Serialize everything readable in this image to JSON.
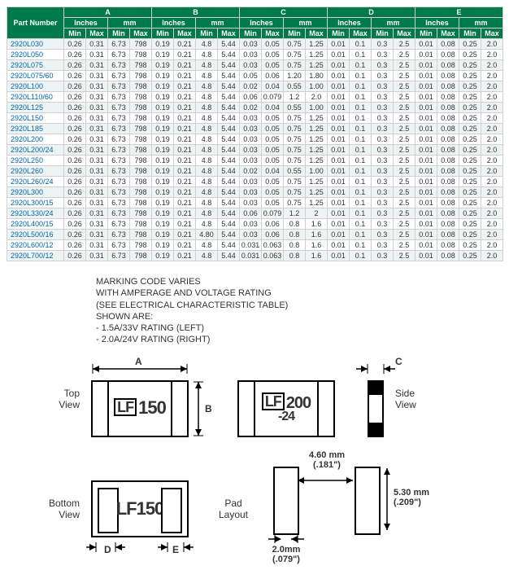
{
  "table": {
    "header_bg": "#007a4d",
    "part_number_label": "Part  Number",
    "dim_labels": [
      "A",
      "B",
      "C",
      "D",
      "E"
    ],
    "unit_labels": [
      "Inches",
      "mm"
    ],
    "minmax": [
      "Min",
      "Max"
    ],
    "rows": [
      {
        "pn": "2920L030",
        "v": [
          "0.26",
          "0.31",
          "6.73",
          "798",
          "0.19",
          "0.21",
          "4.8",
          "5.44",
          "0.03",
          "0.05",
          "0.75",
          "1.25",
          "0.01",
          "0.1",
          "0.3",
          "2.5",
          "0.01",
          "0.08",
          "0.25",
          "2.0"
        ]
      },
      {
        "pn": "2920L050",
        "v": [
          "0.26",
          "0.31",
          "6.73",
          "798",
          "0.19",
          "0.21",
          "4.8",
          "5.44",
          "0.03",
          "0.05",
          "0.75",
          "1.25",
          "0.01",
          "0.1",
          "0.3",
          "2.5",
          "0.01",
          "0.08",
          "0.25",
          "2.0"
        ]
      },
      {
        "pn": "2920L075",
        "v": [
          "0.26",
          "0.31",
          "6.73",
          "798",
          "0.19",
          "0.21",
          "4.8",
          "5.44",
          "0.03",
          "0.05",
          "0.75",
          "1.25",
          "0.01",
          "0.1",
          "0.3",
          "2.5",
          "0.01",
          "0.08",
          "0.25",
          "2.0"
        ]
      },
      {
        "pn": "2920L075/60",
        "v": [
          "0.26",
          "0.31",
          "6.73",
          "798",
          "0.19",
          "0.21",
          "4.8",
          "5.44",
          "0.05",
          "0.06",
          "1.20",
          "1.80",
          "0.01",
          "0.1",
          "0.3",
          "2.5",
          "0.01",
          "0.08",
          "0.25",
          "2.0"
        ]
      },
      {
        "pn": "2920L100",
        "v": [
          "0.26",
          "0.31",
          "6.73",
          "798",
          "0.19",
          "0.21",
          "4.8",
          "5.44",
          "0.02",
          "0.04",
          "0.55",
          "1.00",
          "0.01",
          "0.1",
          "0.3",
          "2.5",
          "0.01",
          "0.08",
          "0.25",
          "2.0"
        ]
      },
      {
        "pn": "2920L110/60",
        "v": [
          "0.26",
          "0.31",
          "6.73",
          "798",
          "0.19",
          "0.21",
          "4.8",
          "5.44",
          "0.06",
          "0.079",
          "1.2",
          "2.0",
          "0.01",
          "0.1",
          "0.3",
          "2.5",
          "0.01",
          "0.08",
          "0.25",
          "2.0"
        ]
      },
      {
        "pn": "2920L125",
        "v": [
          "0.26",
          "0.31",
          "6.73",
          "798",
          "0.19",
          "0.21",
          "4.8",
          "5.44",
          "0.02",
          "0.04",
          "0.55",
          "1.00",
          "0.01",
          "0.1",
          "0.3",
          "2.5",
          "0.01",
          "0.08",
          "0.25",
          "2.0"
        ]
      },
      {
        "pn": "2920L150",
        "v": [
          "0.26",
          "0.31",
          "6.73",
          "798",
          "0.19",
          "0.21",
          "4.8",
          "5.44",
          "0.03",
          "0.05",
          "0.75",
          "1.25",
          "0.01",
          "0.1",
          "0.3",
          "2.5",
          "0.01",
          "0.08",
          "0.25",
          "2.0"
        ]
      },
      {
        "pn": "2920L185",
        "v": [
          "0.26",
          "0.31",
          "6.73",
          "798",
          "0.19",
          "0.21",
          "4.8",
          "5.44",
          "0.03",
          "0.05",
          "0.75",
          "1.25",
          "0.01",
          "0.1",
          "0.3",
          "2.5",
          "0.01",
          "0.08",
          "0.25",
          "2.0"
        ]
      },
      {
        "pn": "2920L200",
        "v": [
          "0.26",
          "0.31",
          "6.73",
          "798",
          "0.19",
          "0.21",
          "4.8",
          "5.44",
          "0.03",
          "0.05",
          "0.75",
          "1.25",
          "0.01",
          "0.1",
          "0.3",
          "2.5",
          "0.01",
          "0.08",
          "0.25",
          "2.0"
        ]
      },
      {
        "pn": "2920L200/24",
        "v": [
          "0.26",
          "0.31",
          "6.73",
          "798",
          "0.19",
          "0.21",
          "4.8",
          "5.44",
          "0.03",
          "0.05",
          "0.75",
          "1.25",
          "0.01",
          "0.1",
          "0.3",
          "2.5",
          "0.01",
          "0.08",
          "0.25",
          "2.0"
        ]
      },
      {
        "pn": "2920L250",
        "v": [
          "0.26",
          "0.31",
          "6.73",
          "798",
          "0.19",
          "0.21",
          "4.8",
          "5.44",
          "0.03",
          "0.05",
          "0.75",
          "1.25",
          "0.01",
          "0.1",
          "0.3",
          "2.5",
          "0.01",
          "0.08",
          "0.25",
          "2.0"
        ]
      },
      {
        "pn": "2920L260",
        "v": [
          "0.26",
          "0.31",
          "6.73",
          "798",
          "0.19",
          "0.21",
          "4.8",
          "5.44",
          "0.02",
          "0.04",
          "0.55",
          "1.00",
          "0.01",
          "0.1",
          "0.3",
          "2.5",
          "0.01",
          "0.08",
          "0.25",
          "2.0"
        ]
      },
      {
        "pn": "2920L260/24",
        "v": [
          "0.26",
          "0.31",
          "6.73",
          "798",
          "0.19",
          "0.21",
          "4.8",
          "5.44",
          "0.03",
          "0.05",
          "0.75",
          "1.25",
          "0.01",
          "0.1",
          "0.3",
          "2.5",
          "0.01",
          "0.08",
          "0.25",
          "2.0"
        ]
      },
      {
        "pn": "2920L300",
        "v": [
          "0.26",
          "0.31",
          "6.73",
          "798",
          "0.19",
          "0.21",
          "4.8",
          "5.44",
          "0.03",
          "0.05",
          "0.75",
          "1.25",
          "0.01",
          "0.1",
          "0.3",
          "2.5",
          "0.01",
          "0.08",
          "0.25",
          "2.0"
        ]
      },
      {
        "pn": "2920L300/15",
        "v": [
          "0.26",
          "0.31",
          "6.73",
          "798",
          "0.19",
          "0.21",
          "4.8",
          "5.44",
          "0.03",
          "0.05",
          "0.75",
          "1.25",
          "0.01",
          "0.1",
          "0.3",
          "2.5",
          "0.01",
          "0.08",
          "0.25",
          "2.0"
        ]
      },
      {
        "pn": "2920L330/24",
        "v": [
          "0.26",
          "0.31",
          "6.73",
          "798",
          "0.19",
          "0.21",
          "4.8",
          "5.44",
          "0.06",
          "0.079",
          "1.2",
          "2",
          "0.01",
          "0.1",
          "0.3",
          "2.5",
          "0.01",
          "0.08",
          "0.25",
          "2.0"
        ]
      },
      {
        "pn": "2920L400/15",
        "v": [
          "0.26",
          "0.31",
          "6.73",
          "798",
          "0.19",
          "0.21",
          "4.8",
          "5.44",
          "0.03",
          "0.06",
          "0.8",
          "1.6",
          "0.01",
          "0.1",
          "0.3",
          "2.5",
          "0.01",
          "0.08",
          "0.25",
          "2.0"
        ]
      },
      {
        "pn": "2920L500/16",
        "v": [
          "0.26",
          "0.31",
          "6.73",
          "798",
          "0.19",
          "0.21",
          "4.80",
          "5.44",
          "0.03",
          "0.06",
          "0.8",
          "1.6",
          "0.01",
          "0.1",
          "0.3",
          "2.5",
          "0.01",
          "0.08",
          "0.25",
          "2.0"
        ]
      },
      {
        "pn": "2920L600/12",
        "v": [
          "0.26",
          "0.31",
          "6.73",
          "798",
          "0.19",
          "0.21",
          "4.8",
          "5.44",
          "0.031",
          "0.063",
          "0.8",
          "1.6",
          "0.01",
          "0.1",
          "0.3",
          "2.5",
          "0.01",
          "0.08",
          "0.25",
          "2.0"
        ]
      },
      {
        "pn": "2920L700/12",
        "v": [
          "0.26",
          "0.31",
          "6.73",
          "798",
          "0.19",
          "0.21",
          "4.8",
          "5.44",
          "0.031",
          "0.063",
          "0.8",
          "1.6",
          "0.01",
          "0.1",
          "0.3",
          "2.5",
          "0.01",
          "0.08",
          "0.25",
          "2.0"
        ]
      }
    ]
  },
  "note": {
    "l1": "MARKING CODE VARIES",
    "l2": "WITH AMPERAGE AND VOLTAGE RATING",
    "l3": "(SEE ELECTRICAL CHARACTERISTIC TABLE)",
    "l4": "SHOWN ARE:",
    "l5": "- 1.5A/33V RATING (LEFT)",
    "l6": "- 2.0A/24V RATING (RIGHT)"
  },
  "labels": {
    "top_view": "Top\nView",
    "side_view": "Side\nView",
    "bottom_view": "Bottom\nView",
    "pad_layout": "Pad\nLayout",
    "A": "A",
    "B": "B",
    "C": "C",
    "D": "D",
    "E": "E"
  },
  "marks": {
    "lf": "LF",
    "m150": "150",
    "m200": "200",
    "m200sub": "-24"
  },
  "pad_dims": {
    "w": "2.0mm",
    "w_in": "(.079\")",
    "gap": "4.60 mm",
    "gap_in": "(.181\")",
    "h": "5.30 mm",
    "h_in": "(.209\")"
  },
  "style": {
    "header_color": "#007a4d",
    "alt_row": "#eef4f4",
    "border": "#d0d0d0",
    "link_color": "#0066aa"
  }
}
